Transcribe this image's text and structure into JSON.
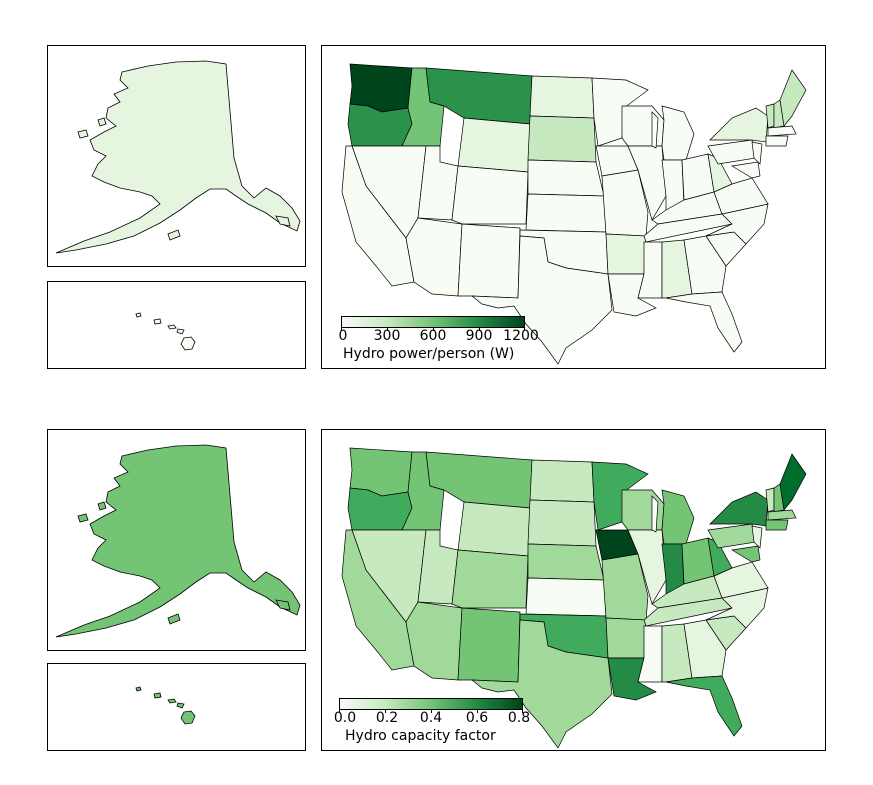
{
  "maps": [
    {
      "variable": "Hydro power/person (W)",
      "legend": {
        "label": "Hydro power/person (W)",
        "ticks": [
          "0",
          "300",
          "600",
          "900",
          "1200"
        ],
        "range": [
          0,
          1200
        ],
        "color_start": "#f7fcf5",
        "color_end": "#00441b"
      }
    },
    {
      "variable": "Hydro capacity factor",
      "legend": {
        "label": "Hydro capacity factor",
        "ticks": [
          "0.0",
          "0.2",
          "0.4",
          "0.6",
          "0.8"
        ],
        "range": [
          0.0,
          0.8
        ],
        "color_start": "#f7fcf5",
        "color_end": "#00441b"
      }
    }
  ],
  "colors": {
    "outline": "#000000",
    "background": "#ffffff"
  }
}
